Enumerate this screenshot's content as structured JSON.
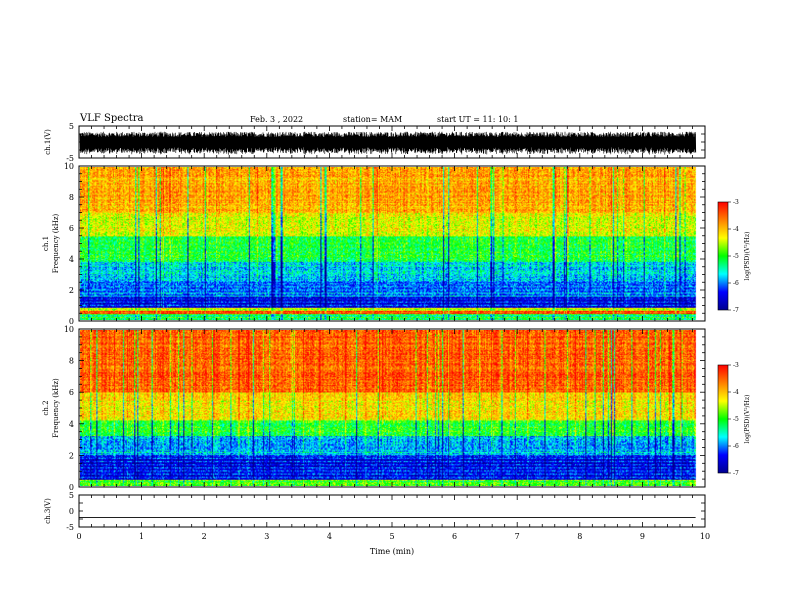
{
  "header": {
    "title": "VLF Spectra",
    "date": "Feb. 3 , 2022",
    "station": "station= MAM",
    "start": "start UT = 11: 10: 1"
  },
  "chart_data": [
    {
      "type": "line",
      "ylabel": "ch.1(V)",
      "ylim": [
        -5,
        5
      ],
      "y_ticks": [
        "5",
        "-5"
      ],
      "signal": "dense noise waveform filling approx -3 to 3 V"
    },
    {
      "type": "heatmap",
      "ylabel_top": "ch.1",
      "ylabel": "Frequency (kHz)",
      "ylim": [
        0,
        10
      ],
      "y_ticks": [
        "0",
        "2",
        "4",
        "6",
        "8",
        "10"
      ],
      "colorbar": {
        "label": "log(PSD)(V²/Hz)",
        "range": [
          -7,
          -3
        ],
        "ticks": [
          "-3",
          "-4",
          "-5",
          "-6",
          "-7"
        ]
      }
    },
    {
      "type": "heatmap",
      "ylabel_top": "ch.2",
      "ylabel": "Frequency (kHz)",
      "ylim": [
        0,
        10
      ],
      "y_ticks": [
        "0",
        "2",
        "4",
        "6",
        "8",
        "10"
      ],
      "colorbar": {
        "label": "log(PSD)(V²/Hz)",
        "range": [
          -7,
          -3
        ],
        "ticks": [
          "-3",
          "-4",
          "-5",
          "-6",
          "-7"
        ]
      }
    },
    {
      "type": "line",
      "ylabel": "ch.3(V)",
      "ylim": [
        -5,
        5
      ],
      "y_ticks": [
        "5",
        "0",
        "-5"
      ],
      "signal": "flat line at -2 V"
    }
  ],
  "xaxis": {
    "label": "Time (min)",
    "xlim": [
      0,
      10
    ],
    "ticks": [
      "0",
      "1",
      "2",
      "3",
      "4",
      "5",
      "6",
      "7",
      "8",
      "9",
      "10"
    ]
  },
  "colors": {
    "jet": [
      "#00008f",
      "#0000ff",
      "#00ffff",
      "#00ff00",
      "#ffff00",
      "#ff8000",
      "#ff0000"
    ]
  }
}
